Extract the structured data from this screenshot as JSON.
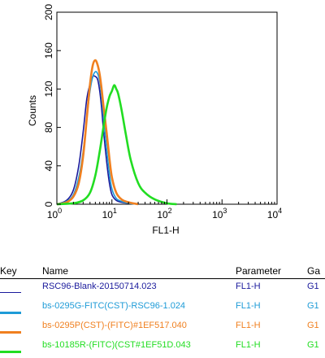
{
  "chart_data": {
    "type": "line",
    "xlabel": "FL1-H",
    "ylabel": "Counts",
    "x_scale": "log",
    "xlim": [
      1,
      10000
    ],
    "ylim": [
      0,
      200
    ],
    "y_ticks": [
      "0",
      "40",
      "80",
      "120",
      "160",
      "200"
    ],
    "x_ticks": [
      {
        "base": "10",
        "exp": "0"
      },
      {
        "base": "10",
        "exp": "1"
      },
      {
        "base": "10",
        "exp": "2"
      },
      {
        "base": "10",
        "exp": "3"
      },
      {
        "base": "10",
        "exp": "4"
      }
    ],
    "series": [
      {
        "name": "RSC96-Blank-20150714.023",
        "color": "#1a1a9c",
        "x": [
          1.0,
          1.5,
          2.0,
          2.5,
          3.0,
          3.5,
          4.0,
          4.5,
          5.0,
          5.5,
          6.0,
          6.5,
          7.0,
          8.0,
          9.0,
          10.0,
          12.0,
          15.0,
          20.0,
          30.0
        ],
        "y": [
          0,
          4,
          15,
          40,
          75,
          110,
          125,
          133,
          133,
          130,
          118,
          100,
          78,
          45,
          22,
          10,
          4,
          2,
          1,
          0
        ]
      },
      {
        "name": "bs-0295G-FITC(CST)-RSC96-1.024",
        "color": "#1e9bd7",
        "x": [
          1.0,
          1.5,
          2.0,
          2.5,
          3.0,
          3.5,
          4.0,
          4.5,
          5.0,
          5.5,
          6.0,
          6.5,
          7.0,
          8.0,
          9.0,
          10.0,
          12.0,
          15.0,
          20.0,
          30.0
        ],
        "y": [
          0,
          3,
          10,
          28,
          55,
          90,
          118,
          133,
          138,
          136,
          128,
          112,
          92,
          58,
          32,
          16,
          6,
          3,
          1,
          0
        ]
      },
      {
        "name": "bs-0295P(CST)-(FITC)#1EF517.040",
        "color": "#f08020",
        "x": [
          1.0,
          1.5,
          2.0,
          2.5,
          3.0,
          3.5,
          4.0,
          4.5,
          5.0,
          5.5,
          6.0,
          6.5,
          7.0,
          8.0,
          9.0,
          10.0,
          12.0,
          15.0,
          20.0,
          30.0
        ],
        "y": [
          0,
          2,
          8,
          22,
          50,
          90,
          125,
          145,
          150,
          145,
          135,
          120,
          103,
          75,
          48,
          28,
          12,
          5,
          2,
          0
        ]
      },
      {
        "name": "bs-10185R-(FITC)(CST#1EF51D.043",
        "color": "#22dd22",
        "x": [
          1.0,
          2.0,
          3.0,
          4.0,
          5.0,
          6.0,
          7.0,
          8.0,
          9.0,
          10.0,
          11.0,
          12.0,
          13.0,
          15.0,
          18.0,
          22.0,
          30.0,
          40.0,
          60.0,
          100.0,
          150.0
        ],
        "y": [
          0,
          1,
          4,
          12,
          30,
          55,
          80,
          100,
          112,
          118,
          124,
          120,
          115,
          98,
          72,
          46,
          22,
          12,
          5,
          1,
          0
        ]
      }
    ]
  },
  "legend": {
    "headers": {
      "key": "Key",
      "name": "Name",
      "parameter": "Parameter",
      "gate": "Ga"
    },
    "rows": [
      {
        "color": "#1a1a9c",
        "name": "RSC96-Blank-20150714.023",
        "parameter": "FL1-H",
        "gate": "G1"
      },
      {
        "color": "#1e9bd7",
        "name": "bs-0295G-FITC(CST)-RSC96-1.024",
        "parameter": "FL1-H",
        "gate": "G1"
      },
      {
        "color": "#f08020",
        "name": "bs-0295P(CST)-(FITC)#1EF517.040",
        "parameter": "FL1-H",
        "gate": "G1"
      },
      {
        "color": "#22dd22",
        "name": "bs-10185R-(FITC)(CST#1EF51D.043",
        "parameter": "FL1-H",
        "gate": "G1"
      }
    ]
  }
}
